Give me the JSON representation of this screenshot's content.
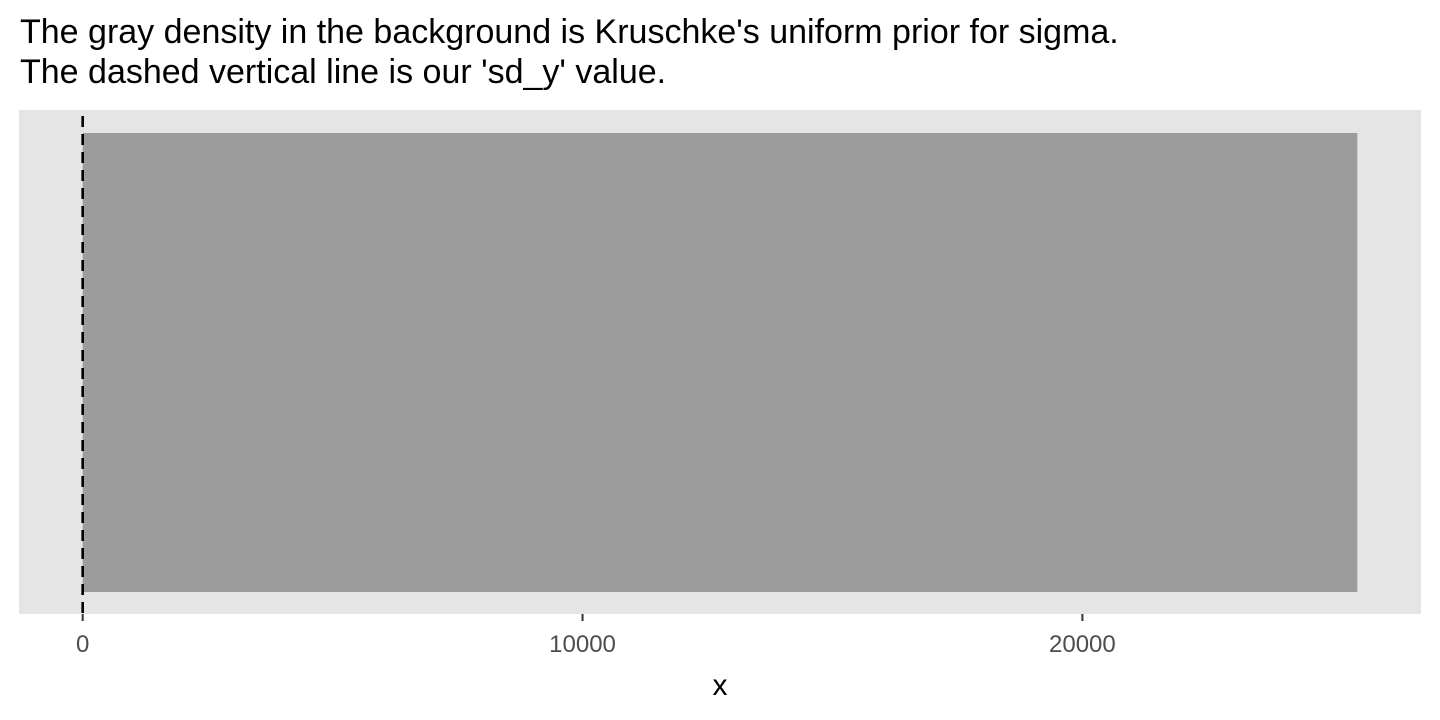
{
  "chart_data": {
    "type": "area",
    "title": "The gray density in the background is Kruschke's uniform prior for sigma.",
    "subtitle": "The dashed vertical line is our 'sd_y' value.",
    "xlabel": "x",
    "ylabel": "",
    "x_ticks": [
      0,
      10000,
      20000
    ],
    "x_tick_labels": [
      "0",
      "10000",
      "20000"
    ],
    "xlim": [
      -1274,
      26774
    ],
    "y_ticks": [],
    "grid": false,
    "legend": "none",
    "series": [
      {
        "kind": "uniform-density",
        "x_range": [
          0,
          25500
        ],
        "density": 1,
        "fill_color": "#9c9c9c"
      }
    ],
    "reference_lines": [
      {
        "orientation": "vertical",
        "x": 0,
        "style": "dashed",
        "color": "#000000"
      }
    ],
    "panel_background": "#e5e5e5",
    "tick_label_color": "#4d4d4d"
  }
}
